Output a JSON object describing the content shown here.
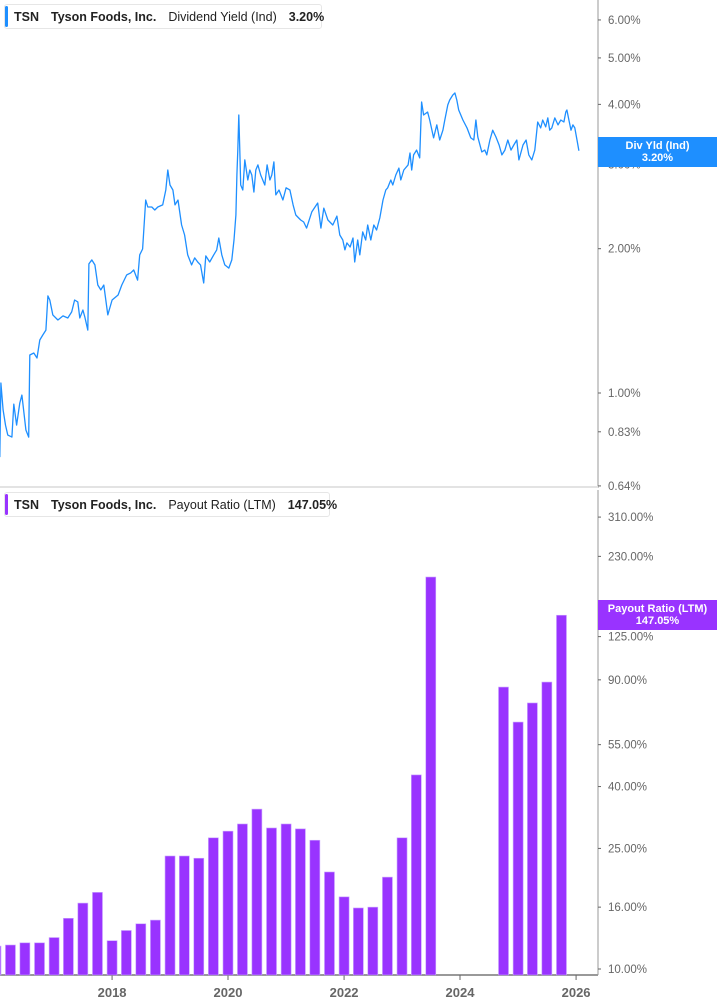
{
  "colors": {
    "yield": "#1e8fff",
    "payout": "#9933ff",
    "axis": "#999999",
    "divider": "#e3e3e3"
  },
  "legend_top": {
    "ticker": "TSN",
    "company": "Tyson Foods, Inc.",
    "metric": "Dividend Yield (Ind)",
    "value": "3.20%"
  },
  "legend_bottom": {
    "ticker": "TSN",
    "company": "Tyson Foods, Inc.",
    "metric": "Payout Ratio (LTM)",
    "value": "147.05%"
  },
  "badge_top": {
    "label": "Div Yld (Ind)",
    "value": "3.20%"
  },
  "badge_bottom": {
    "label": "Payout Ratio (LTM)",
    "value": "147.05%"
  },
  "chart_data": [
    {
      "type": "line",
      "title": "Dividend Yield (Ind)",
      "y_scale": "log",
      "y_ticks": [
        {
          "v": 6,
          "label": "6.00%"
        },
        {
          "v": 5,
          "label": "5.00%"
        },
        {
          "v": 4,
          "label": "4.00%"
        },
        {
          "v": 3,
          "label": "3.00%"
        },
        {
          "v": 2,
          "label": "2.00%"
        },
        {
          "v": 1,
          "label": "1.00%"
        },
        {
          "v": 0.83,
          "label": "0.83%"
        },
        {
          "v": 0.64,
          "label": "0.64%"
        }
      ],
      "ylim": [
        0.64,
        7
      ],
      "grid": false,
      "series": [
        {
          "name": "Dividend Yield (Ind)",
          "points": [
            [
              "2016-01-25",
              0.735
            ],
            [
              "2016-02-01",
              1.049
            ],
            [
              "2016-02-15",
              0.922
            ],
            [
              "2016-03-01",
              0.857
            ],
            [
              "2016-03-15",
              0.817
            ],
            [
              "2016-04-10",
              0.809
            ],
            [
              "2016-04-22",
              0.948
            ],
            [
              "2016-05-10",
              0.857
            ],
            [
              "2016-05-30",
              0.953
            ],
            [
              "2016-06-12",
              0.99
            ],
            [
              "2016-07-07",
              0.837
            ],
            [
              "2016-07-25",
              0.809
            ],
            [
              "2016-08-01",
              1.2
            ],
            [
              "2016-08-26",
              1.212
            ],
            [
              "2016-09-15",
              1.183
            ],
            [
              "2016-10-03",
              1.29
            ],
            [
              "2016-10-22",
              1.321
            ],
            [
              "2016-11-10",
              1.353
            ],
            [
              "2016-11-23",
              1.594
            ],
            [
              "2016-12-05",
              1.563
            ],
            [
              "2016-12-24",
              1.455
            ],
            [
              "2017-01-25",
              1.42
            ],
            [
              "2017-02-26",
              1.448
            ],
            [
              "2017-03-28",
              1.434
            ],
            [
              "2017-04-22",
              1.476
            ],
            [
              "2017-05-10",
              1.563
            ],
            [
              "2017-05-30",
              1.549
            ],
            [
              "2017-06-12",
              1.434
            ],
            [
              "2017-07-01",
              1.49
            ],
            [
              "2017-07-13",
              1.441
            ],
            [
              "2017-08-01",
              1.353
            ],
            [
              "2017-08-08",
              1.859
            ],
            [
              "2017-08-26",
              1.895
            ],
            [
              "2017-09-15",
              1.85
            ],
            [
              "2017-10-03",
              1.68
            ],
            [
              "2017-10-22",
              1.641
            ],
            [
              "2017-11-10",
              1.68
            ],
            [
              "2017-12-05",
              1.455
            ],
            [
              "2018-01-01",
              1.563
            ],
            [
              "2018-02-08",
              1.601
            ],
            [
              "2018-03-03",
              1.68
            ],
            [
              "2018-04-03",
              1.763
            ],
            [
              "2018-04-28",
              1.78
            ],
            [
              "2018-05-17",
              1.806
            ],
            [
              "2018-06-11",
              1.72
            ],
            [
              "2018-06-24",
              1.941
            ],
            [
              "2018-07-12",
              1.997
            ],
            [
              "2018-08-01",
              2.527
            ],
            [
              "2018-08-14",
              2.443
            ],
            [
              "2018-09-08",
              2.443
            ],
            [
              "2018-09-27",
              2.408
            ],
            [
              "2018-10-16",
              2.443
            ],
            [
              "2018-11-16",
              2.468
            ],
            [
              "2018-12-05",
              2.651
            ],
            [
              "2018-12-18",
              2.918
            ],
            [
              "2019-01-01",
              2.716
            ],
            [
              "2019-01-19",
              2.651
            ],
            [
              "2019-02-01",
              2.468
            ],
            [
              "2019-02-20",
              2.527
            ],
            [
              "2019-03-15",
              2.241
            ],
            [
              "2019-04-03",
              2.136
            ],
            [
              "2019-04-22",
              1.941
            ],
            [
              "2019-05-17",
              1.85
            ],
            [
              "2019-06-05",
              1.913
            ],
            [
              "2019-06-24",
              1.876
            ],
            [
              "2019-07-12",
              1.85
            ],
            [
              "2019-08-01",
              1.696
            ],
            [
              "2019-08-14",
              1.932
            ],
            [
              "2019-09-08",
              1.876
            ],
            [
              "2019-10-03",
              1.941
            ],
            [
              "2019-10-22",
              1.988
            ],
            [
              "2019-11-04",
              2.105
            ],
            [
              "2019-11-23",
              1.941
            ],
            [
              "2019-12-12",
              1.85
            ],
            [
              "2020-01-06",
              1.822
            ],
            [
              "2020-01-25",
              1.895
            ],
            [
              "2020-02-08",
              2.085
            ],
            [
              "2020-02-20",
              2.351
            ],
            [
              "2020-02-26",
              2.849
            ],
            [
              "2020-03-03",
              3.212
            ],
            [
              "2020-03-09",
              3.801
            ],
            [
              "2020-03-15",
              3.212
            ],
            [
              "2020-03-21",
              2.716
            ],
            [
              "2020-04-03",
              2.651
            ],
            [
              "2020-04-16",
              3.064
            ],
            [
              "2020-05-05",
              2.782
            ],
            [
              "2020-05-17",
              2.918
            ],
            [
              "2020-05-30",
              2.849
            ],
            [
              "2020-06-12",
              2.625
            ],
            [
              "2020-06-24",
              2.918
            ],
            [
              "2020-07-07",
              2.991
            ],
            [
              "2020-07-25",
              2.849
            ],
            [
              "2020-08-20",
              2.716
            ],
            [
              "2020-09-03",
              2.991
            ],
            [
              "2020-09-21",
              2.782
            ],
            [
              "2020-10-03",
              2.849
            ],
            [
              "2020-10-16",
              3.035
            ],
            [
              "2020-10-28",
              2.589
            ],
            [
              "2020-11-17",
              2.651
            ],
            [
              "2020-12-12",
              2.527
            ],
            [
              "2021-01-01",
              2.679
            ],
            [
              "2021-01-25",
              2.651
            ],
            [
              "2021-02-14",
              2.468
            ],
            [
              "2021-03-03",
              2.351
            ],
            [
              "2021-03-21",
              2.318
            ],
            [
              "2021-04-03",
              2.295
            ],
            [
              "2021-04-22",
              2.274
            ],
            [
              "2021-05-10",
              2.208
            ],
            [
              "2021-06-12",
              2.386
            ],
            [
              "2021-07-19",
              2.491
            ],
            [
              "2021-08-08",
              2.208
            ],
            [
              "2021-08-26",
              2.431
            ],
            [
              "2021-09-21",
              2.295
            ],
            [
              "2021-10-22",
              2.241
            ],
            [
              "2021-11-17",
              2.339
            ],
            [
              "2021-12-05",
              2.136
            ],
            [
              "2021-12-24",
              2.085
            ],
            [
              "2022-01-06",
              1.988
            ],
            [
              "2022-01-19",
              2.056
            ],
            [
              "2022-02-08",
              2.016
            ],
            [
              "2022-02-26",
              2.105
            ],
            [
              "2022-03-09",
              1.876
            ],
            [
              "2022-03-28",
              2.085
            ],
            [
              "2022-04-10",
              1.941
            ],
            [
              "2022-04-28",
              2.168
            ],
            [
              "2022-05-17",
              2.085
            ],
            [
              "2022-05-30",
              2.241
            ],
            [
              "2022-06-18",
              2.085
            ],
            [
              "2022-07-07",
              2.241
            ],
            [
              "2022-07-25",
              2.188
            ],
            [
              "2022-08-14",
              2.318
            ],
            [
              "2022-09-03",
              2.527
            ],
            [
              "2022-09-21",
              2.651
            ],
            [
              "2022-10-03",
              2.679
            ],
            [
              "2022-10-22",
              2.782
            ],
            [
              "2022-11-04",
              2.716
            ],
            [
              "2022-11-23",
              2.849
            ],
            [
              "2022-12-12",
              2.946
            ],
            [
              "2022-12-24",
              2.782
            ],
            [
              "2023-01-12",
              2.918
            ],
            [
              "2023-02-08",
              2.991
            ],
            [
              "2023-02-20",
              3.167
            ],
            [
              "2023-03-03",
              2.918
            ],
            [
              "2023-03-15",
              3.138
            ],
            [
              "2023-04-03",
              3.212
            ],
            [
              "2023-04-22",
              3.093
            ],
            [
              "2023-05-04",
              4.046
            ],
            [
              "2023-05-17",
              3.801
            ],
            [
              "2023-06-11",
              3.857
            ],
            [
              "2023-06-24",
              3.711
            ],
            [
              "2023-07-19",
              3.405
            ],
            [
              "2023-08-08",
              3.625
            ],
            [
              "2023-08-26",
              3.371
            ],
            [
              "2023-09-15",
              3.534
            ],
            [
              "2023-09-27",
              3.711
            ],
            [
              "2023-10-16",
              3.989
            ],
            [
              "2023-10-28",
              4.085
            ],
            [
              "2023-11-17",
              4.186
            ],
            [
              "2023-11-30",
              4.226
            ],
            [
              "2023-12-12",
              4.085
            ],
            [
              "2023-12-24",
              3.894
            ],
            [
              "2024-01-19",
              3.711
            ],
            [
              "2024-02-14",
              3.572
            ],
            [
              "2024-03-09",
              3.405
            ],
            [
              "2024-03-28",
              3.371
            ],
            [
              "2024-04-10",
              3.711
            ],
            [
              "2024-04-22",
              3.421
            ],
            [
              "2024-05-17",
              3.183
            ],
            [
              "2024-06-05",
              3.212
            ],
            [
              "2024-06-18",
              3.138
            ],
            [
              "2024-07-07",
              3.371
            ],
            [
              "2024-07-25",
              3.534
            ],
            [
              "2024-08-14",
              3.421
            ],
            [
              "2024-09-03",
              3.291
            ],
            [
              "2024-09-21",
              3.138
            ],
            [
              "2024-10-10",
              3.212
            ],
            [
              "2024-10-28",
              3.371
            ],
            [
              "2024-11-17",
              3.212
            ],
            [
              "2024-12-05",
              3.291
            ],
            [
              "2024-12-24",
              3.371
            ],
            [
              "2025-01-06",
              3.064
            ],
            [
              "2025-02-01",
              3.291
            ],
            [
              "2025-02-20",
              3.371
            ],
            [
              "2025-03-09",
              3.138
            ],
            [
              "2025-03-28",
              3.064
            ],
            [
              "2025-04-16",
              3.212
            ],
            [
              "2025-05-04",
              3.676
            ],
            [
              "2025-05-23",
              3.572
            ],
            [
              "2025-06-05",
              3.711
            ],
            [
              "2025-06-24",
              3.589
            ],
            [
              "2025-07-07",
              3.749
            ],
            [
              "2025-07-19",
              3.534
            ],
            [
              "2025-08-01",
              3.572
            ],
            [
              "2025-08-20",
              3.749
            ],
            [
              "2025-09-09",
              3.625
            ],
            [
              "2025-09-27",
              3.711
            ],
            [
              "2025-10-16",
              3.676
            ],
            [
              "2025-10-28",
              3.857
            ],
            [
              "2025-11-04",
              3.894
            ],
            [
              "2025-11-17",
              3.711
            ],
            [
              "2025-11-30",
              3.534
            ],
            [
              "2025-12-12",
              3.625
            ],
            [
              "2025-12-24",
              3.572
            ],
            [
              "2026-01-07",
              3.371
            ],
            [
              "2026-01-19",
              3.2
            ]
          ]
        }
      ]
    },
    {
      "type": "bar",
      "title": "Payout Ratio (LTM)",
      "y_scale": "log",
      "y_ticks": [
        {
          "v": 310,
          "label": "310.00%"
        },
        {
          "v": 230,
          "label": "230.00%"
        },
        {
          "v": 125,
          "label": "125.00%"
        },
        {
          "v": 90,
          "label": "90.00%"
        },
        {
          "v": 55,
          "label": "55.00%"
        },
        {
          "v": 40,
          "label": "40.00%"
        },
        {
          "v": 25,
          "label": "25.00%"
        },
        {
          "v": 16,
          "label": "16.00%"
        },
        {
          "v": 10,
          "label": "10.00%"
        }
      ],
      "x_ticks": [
        "2018",
        "2020",
        "2022",
        "2024",
        "2026"
      ],
      "grid": false,
      "categories": [
        "2016-01",
        "2016-04",
        "2016-07",
        "2016-10",
        "2017-01",
        "2017-04",
        "2017-07",
        "2017-10",
        "2018-01",
        "2018-04",
        "2018-07",
        "2018-10",
        "2019-01",
        "2019-04",
        "2019-07",
        "2019-10",
        "2020-01",
        "2020-04",
        "2020-07",
        "2020-10",
        "2021-01",
        "2021-04",
        "2021-07",
        "2021-10",
        "2022-01",
        "2022-04",
        "2022-07",
        "2022-10",
        "2023-01",
        "2023-04",
        "2023-07",
        "2023-10",
        "2024-01",
        "2024-04",
        "2024-07",
        "2024-10",
        "2025-01",
        "2025-04",
        "2025-07",
        "2025-10"
      ],
      "values": [
        11.9,
        12.0,
        12.2,
        12.2,
        12.7,
        14.7,
        16.5,
        17.9,
        12.4,
        13.4,
        14.1,
        14.5,
        23.6,
        23.6,
        23.2,
        27.1,
        28.5,
        30.1,
        33.7,
        29.2,
        30.1,
        29.0,
        26.6,
        20.9,
        17.3,
        15.9,
        16.0,
        20.1,
        27.1,
        43.7,
        196.6,
        null,
        null,
        null,
        null,
        85.2,
        65.3,
        75.5,
        88.5,
        147.05
      ]
    }
  ]
}
